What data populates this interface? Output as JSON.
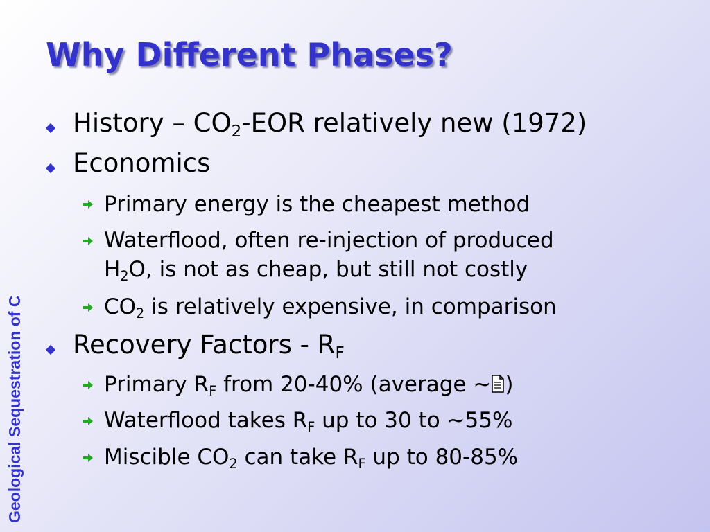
{
  "slide": {
    "title": "Why Different Phases?",
    "side_label": "Geological Sequestration of C",
    "bullets": [
      {
        "text": [
          "History – CO",
          "2",
          "-EOR relatively new (1972)"
        ]
      },
      {
        "text": [
          "Economics"
        ],
        "items": [
          [
            "Primary energy is the cheapest method"
          ],
          [
            "Waterflood, often re-injection of produced",
            "H",
            "2",
            "O, is not as cheap, but still not costly"
          ],
          [
            "CO",
            "2",
            " is relatively expensive, in comparison"
          ]
        ]
      },
      {
        "text": [
          "Recovery Factors - R",
          "F"
        ],
        "items": [
          [
            "Primary R",
            "F",
            " from 20-40% (average ~",
            ")"
          ],
          [
            "Waterflood takes R",
            "F",
            " up to 30 to ~55%"
          ],
          [
            "Miscible CO",
            "2",
            " can take R",
            "F",
            " up to 80-85%"
          ]
        ]
      }
    ]
  }
}
